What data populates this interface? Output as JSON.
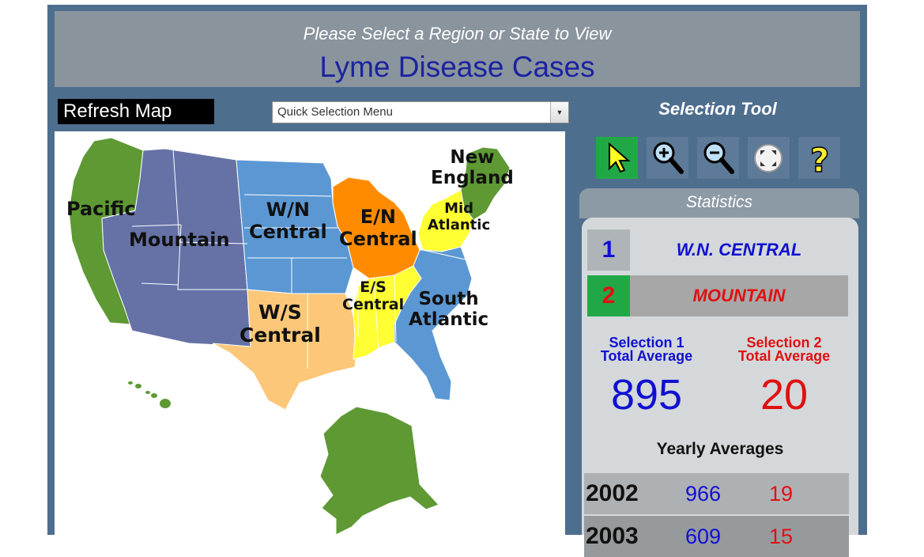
{
  "header": {
    "subtitle": "Please Select a Region or State to View",
    "title": "Lyme Disease Cases"
  },
  "controls": {
    "refresh_label": "Refresh Map",
    "quick_select": "Quick Selection Menu"
  },
  "map": {
    "regions": [
      {
        "id": "pacific",
        "label": "Pacific",
        "color": "#5e9934"
      },
      {
        "id": "mountain",
        "label": "Mountain",
        "color": "#6672a6"
      },
      {
        "id": "wn-central",
        "label": "W/N\nCentral",
        "color": "#5b98d3"
      },
      {
        "id": "en-central",
        "label": "E/N\nCentral",
        "color": "#ff8c00"
      },
      {
        "id": "new-england",
        "label": "New\nEngland",
        "color": "#5e9934"
      },
      {
        "id": "mid-atlantic",
        "label": "Mid\nAtlantic",
        "color": "#ffff33"
      },
      {
        "id": "es-central",
        "label": "E/S\nCentral",
        "color": "#ffff33"
      },
      {
        "id": "south-atlantic",
        "label": "South\nAtlantic",
        "color": "#5b98d3"
      },
      {
        "id": "ws-central",
        "label": "W/S\nCentral",
        "color": "#fcc779"
      }
    ]
  },
  "selection_tool": {
    "title": "Selection Tool",
    "tools": [
      {
        "name": "pointer-icon",
        "active": true
      },
      {
        "name": "zoom-in-icon",
        "active": false
      },
      {
        "name": "zoom-out-icon",
        "active": false
      },
      {
        "name": "fullscreen-icon",
        "active": false
      },
      {
        "name": "help-icon",
        "active": false
      }
    ]
  },
  "statistics": {
    "tab_label": "Statistics",
    "selection1": {
      "number": "1",
      "name": "W.N. CENTRAL",
      "color": "#1010d0"
    },
    "selection2": {
      "number": "2",
      "name": "MOUNTAIN",
      "color": "#e01010"
    },
    "sel1_label_line1": "Selection 1",
    "sel1_label_line2": "Total Average",
    "sel2_label_line1": "Selection 2",
    "sel2_label_line2": "Total Average",
    "sel1_total": "895",
    "sel2_total": "20",
    "yearly_title": "Yearly Averages",
    "yearly": [
      {
        "year": "2002",
        "sel1": "966",
        "sel2": "19"
      },
      {
        "year": "2003",
        "sel1": "609",
        "sel2": "15"
      }
    ]
  }
}
